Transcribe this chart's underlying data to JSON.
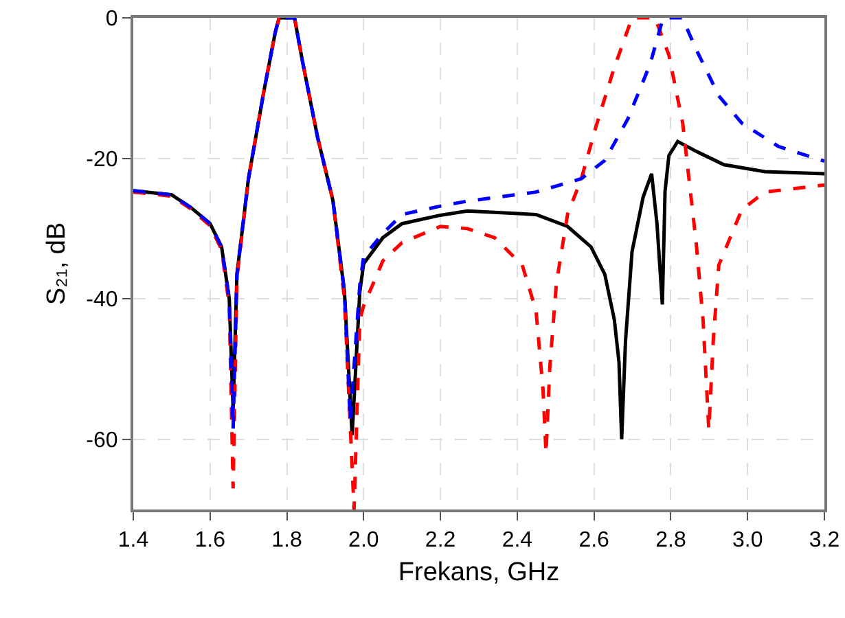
{
  "chart_data": {
    "type": "line",
    "xlabel": "Frekans, GHz",
    "ylabel": "S₂₁, dB",
    "xlim": [
      1.4,
      3.2
    ],
    "xticks": [
      {
        "value": 1.4,
        "label": "1.4"
      },
      {
        "value": 1.6,
        "label": "1.6"
      },
      {
        "value": 1.8,
        "label": "1.8"
      },
      {
        "value": 2.0,
        "label": "2.0"
      },
      {
        "value": 2.2,
        "label": "2.2"
      },
      {
        "value": 2.4,
        "label": "2.4"
      },
      {
        "value": 2.6,
        "label": "2.6"
      },
      {
        "value": 2.8,
        "label": "2.8"
      },
      {
        "value": 3.0,
        "label": "3.0"
      },
      {
        "value": 3.2,
        "label": "3.2"
      }
    ],
    "ylim": [
      -70,
      0
    ],
    "yticks": [
      -60,
      -40,
      -20,
      0
    ],
    "grid": true,
    "legend": false,
    "marker": "none",
    "series": [
      {
        "color": "#000000",
        "line_style": "solid",
        "x": [
          1.4,
          1.5,
          1.55,
          1.6,
          1.63,
          1.65,
          1.66,
          1.67,
          1.7,
          1.74,
          1.77,
          1.78,
          1.82,
          1.84,
          1.88,
          1.92,
          1.95,
          1.97,
          1.99,
          2.0,
          2.05,
          2.1,
          2.2,
          2.27,
          2.449,
          2.531,
          2.592,
          2.628,
          2.653,
          2.665,
          2.672,
          2.682,
          2.699,
          2.728,
          2.75,
          2.764,
          2.778,
          2.785,
          2.795,
          2.818,
          2.866,
          2.938,
          3.045,
          3.2
        ],
        "values": [
          -24.6,
          -25.2,
          -27,
          -29.3,
          -32.6,
          -40,
          -55.7,
          -36.5,
          -22.9,
          -10.5,
          -2,
          0,
          0,
          -6,
          -17,
          -26,
          -39,
          -59.4,
          -39,
          -35,
          -31.3,
          -29.3,
          -28.1,
          -27.5,
          -28,
          -29.7,
          -32.6,
          -36.5,
          -43,
          -49,
          -60,
          -46,
          -33.3,
          -25.5,
          -22.2,
          -29.3,
          -40.8,
          -24.7,
          -19.6,
          -17.6,
          -19,
          -20.9,
          -21.9,
          -22.2
        ]
      },
      {
        "color": "#ff0000",
        "line_style": "dashed",
        "x": [
          1.4,
          1.5,
          1.55,
          1.6,
          1.63,
          1.65,
          1.66,
          1.67,
          1.7,
          1.74,
          1.77,
          1.78,
          1.82,
          1.84,
          1.88,
          1.92,
          1.95,
          1.975,
          1.99,
          2.0,
          2.05,
          2.1,
          2.2,
          2.27,
          2.341,
          2.413,
          2.449,
          2.467,
          2.475,
          2.485,
          2.502,
          2.531,
          2.567,
          2.604,
          2.652,
          2.699,
          2.759,
          2.795,
          2.831,
          2.866,
          2.884,
          2.899,
          2.911,
          2.925,
          2.985,
          3.045,
          3.2
        ],
        "values": [
          -24.8,
          -25.4,
          -27.2,
          -29.6,
          -33,
          -41,
          -67,
          -37,
          -23,
          -10.5,
          -2,
          0,
          0,
          -6,
          -17,
          -26,
          -40,
          -70,
          -43,
          -41,
          -34.6,
          -32,
          -29.7,
          -30,
          -31.3,
          -35.2,
          -41.7,
          -52.8,
          -62,
          -49.6,
          -37.8,
          -28,
          -22.9,
          -15.7,
          -7.2,
          0,
          0,
          -5.3,
          -15,
          -32,
          -43,
          -58.6,
          -45.6,
          -35.2,
          -27.3,
          -24.8,
          -23.8
        ]
      },
      {
        "color": "#0000ff",
        "line_style": "dashed",
        "x": [
          1.4,
          1.5,
          1.55,
          1.6,
          1.63,
          1.65,
          1.66,
          1.67,
          1.7,
          1.74,
          1.77,
          1.78,
          1.82,
          1.84,
          1.88,
          1.92,
          1.95,
          1.965,
          1.99,
          2.0,
          2.05,
          2.1,
          2.2,
          2.27,
          2.449,
          2.567,
          2.628,
          2.688,
          2.746,
          2.78,
          2.83,
          2.867,
          2.925,
          2.985,
          3.08,
          3.2
        ],
        "values": [
          -24.6,
          -25.2,
          -27,
          -29.3,
          -32.6,
          -40,
          -58.6,
          -36.5,
          -22.9,
          -10.5,
          -2,
          0,
          0,
          -6,
          -17,
          -26,
          -39,
          -57.4,
          -38,
          -34,
          -30.7,
          -28,
          -26.8,
          -26.1,
          -24.8,
          -22.9,
          -20.3,
          -14.4,
          -6.6,
          0,
          0,
          -4.6,
          -11.1,
          -15,
          -18.3,
          -20.4
        ]
      }
    ]
  }
}
